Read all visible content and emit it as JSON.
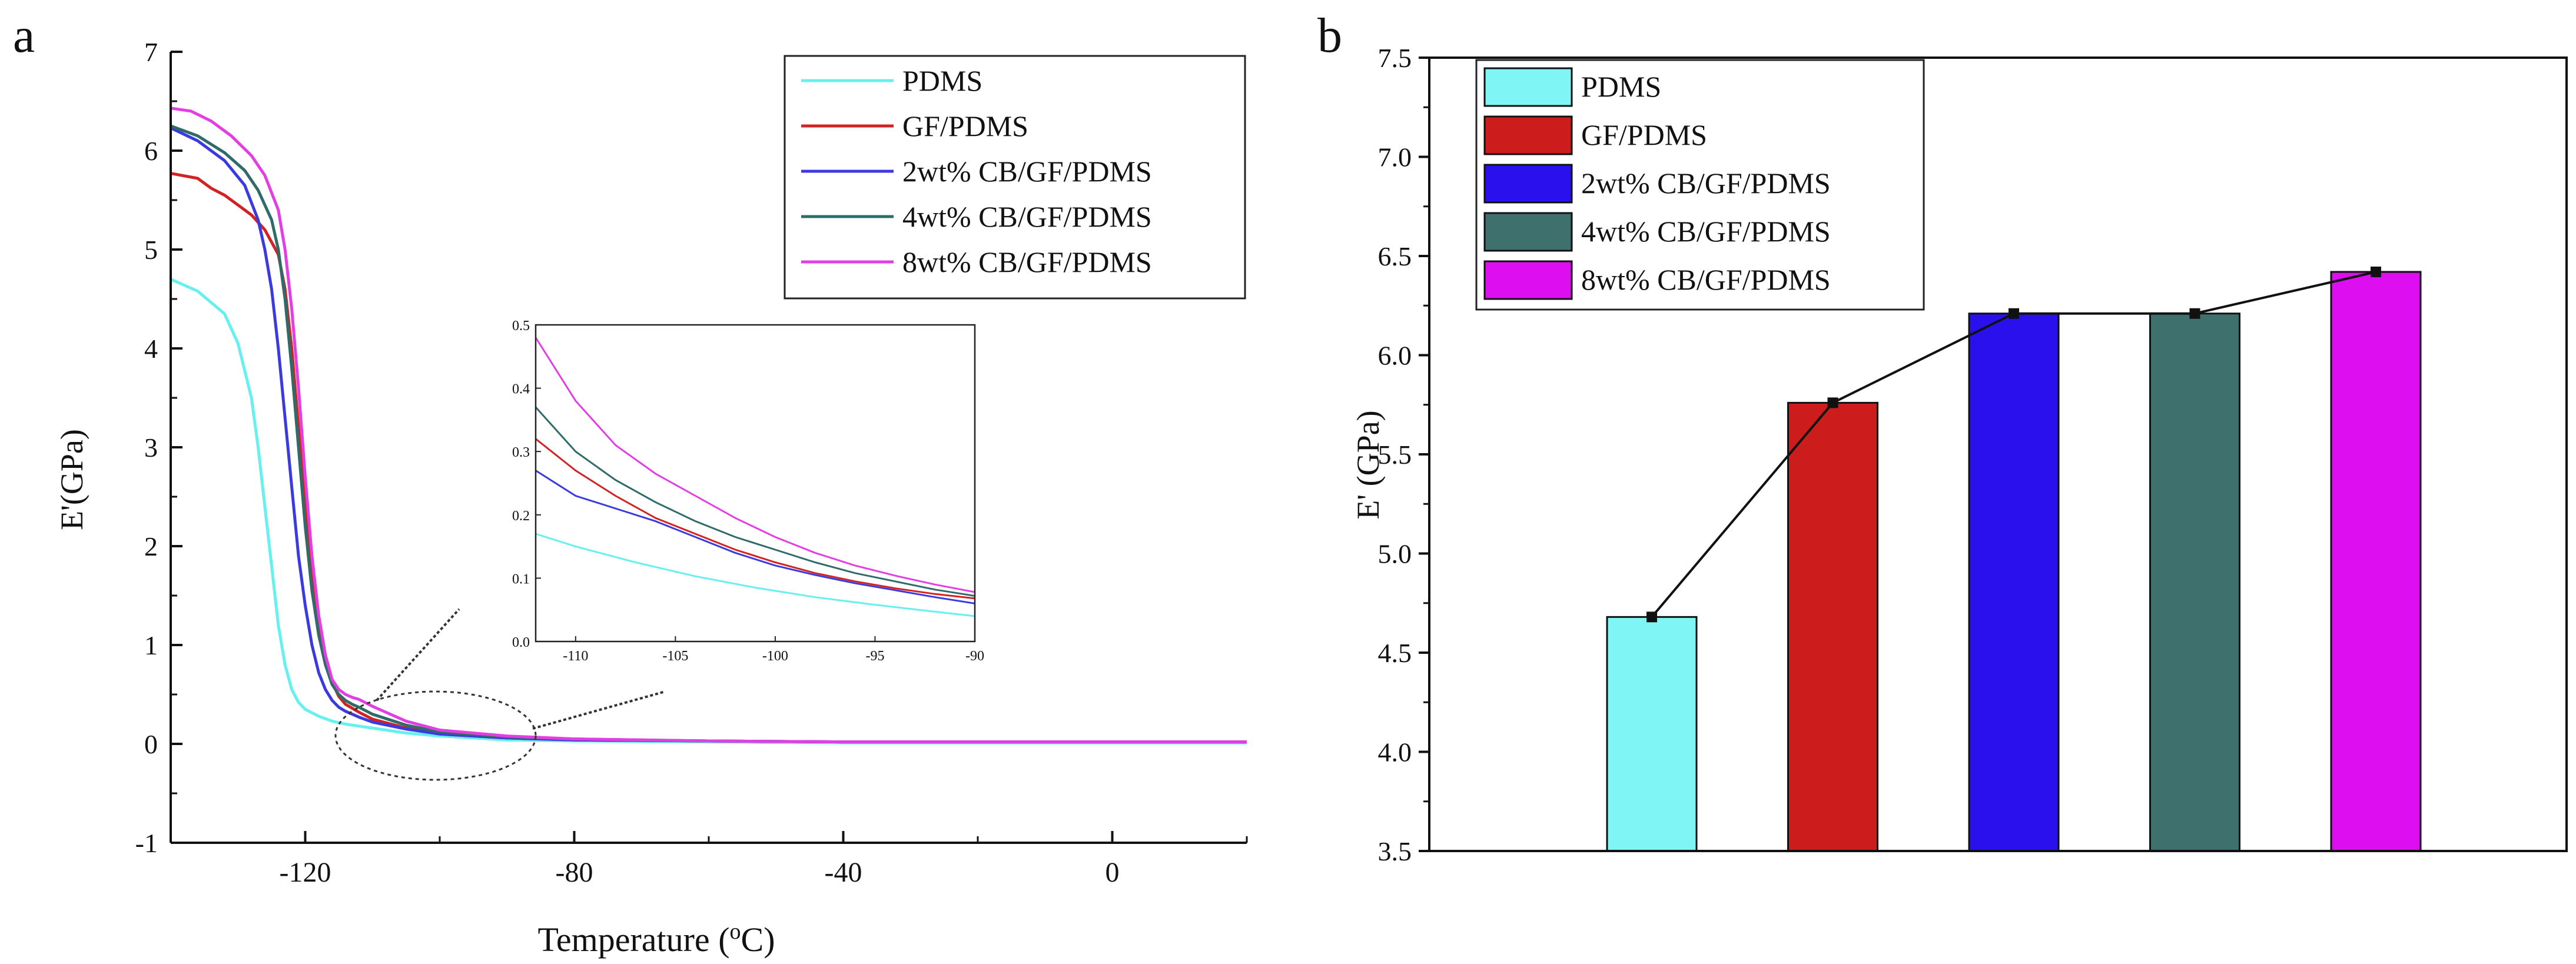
{
  "chart_data": [
    {
      "panel": "a",
      "type": "line",
      "xlabel": "Temperature",
      "xlabel_superscript": "o",
      "xlabel_unit": "C",
      "ylabel": "E'(GPa)",
      "xlim": [
        -140,
        20
      ],
      "ylim": [
        -1,
        7
      ],
      "xticks": [
        -120,
        -80,
        -40,
        0
      ],
      "xtick_labels": [
        "-120",
        "-80",
        "-40",
        "0"
      ],
      "yticks": [
        -1,
        0,
        1,
        2,
        3,
        4,
        5,
        6,
        7
      ],
      "ytick_labels": [
        "-1",
        "0",
        "1",
        "2",
        "3",
        "4",
        "5",
        "6",
        "7"
      ],
      "legend_position": "top-right",
      "series": [
        {
          "name": "PDMS",
          "color": "#66f0f0",
          "x": [
            -140,
            -136,
            -132,
            -130,
            -128,
            -127,
            -126,
            -125,
            -124,
            -123,
            -122,
            -121,
            -120,
            -118,
            -116,
            -114,
            -112,
            -110,
            -105,
            -100,
            -90,
            -80,
            -60,
            -40,
            -20,
            0,
            20
          ],
          "y": [
            4.7,
            4.58,
            4.35,
            4.05,
            3.5,
            3.0,
            2.4,
            1.8,
            1.2,
            0.8,
            0.55,
            0.42,
            0.35,
            0.28,
            0.23,
            0.2,
            0.18,
            0.16,
            0.11,
            0.08,
            0.04,
            0.03,
            0.02,
            0.01,
            0.01,
            0.01,
            0.01
          ]
        },
        {
          "name": "GF/PDMS",
          "color": "#d22222",
          "x": [
            -140,
            -136,
            -134,
            -132,
            -130,
            -128,
            -126,
            -124,
            -123,
            -122,
            -121,
            -120,
            -119,
            -118,
            -117,
            -116,
            -115,
            -114,
            -113,
            -112,
            -110,
            -105,
            -100,
            -90,
            -80,
            -60,
            -40,
            -20,
            0,
            20
          ],
          "y": [
            5.77,
            5.72,
            5.62,
            5.55,
            5.45,
            5.35,
            5.2,
            4.95,
            4.6,
            4.0,
            3.2,
            2.4,
            1.7,
            1.2,
            0.85,
            0.62,
            0.48,
            0.4,
            0.36,
            0.32,
            0.25,
            0.16,
            0.1,
            0.06,
            0.04,
            0.03,
            0.02,
            0.02,
            0.02,
            0.02
          ]
        },
        {
          "name": "2wt% CB/GF/PDMS",
          "color": "#3a3ae0",
          "x": [
            -140,
            -136,
            -132,
            -129,
            -127,
            -126,
            -125,
            -124,
            -123,
            -122,
            -121,
            -120,
            -119,
            -118,
            -117,
            -116,
            -115,
            -114,
            -113,
            -112,
            -110,
            -105,
            -100,
            -90,
            -80,
            -60,
            -40,
            -20,
            0,
            20
          ],
          "y": [
            6.23,
            6.1,
            5.9,
            5.65,
            5.3,
            5.0,
            4.6,
            4.0,
            3.3,
            2.6,
            1.9,
            1.4,
            1.0,
            0.72,
            0.55,
            0.44,
            0.37,
            0.33,
            0.3,
            0.27,
            0.22,
            0.15,
            0.1,
            0.06,
            0.04,
            0.03,
            0.02,
            0.02,
            0.02,
            0.02
          ]
        },
        {
          "name": "4wt% CB/GF/PDMS",
          "color": "#2f6b68",
          "x": [
            -140,
            -136,
            -132,
            -129,
            -127,
            -125,
            -124,
            -123,
            -122,
            -121,
            -120,
            -119,
            -118,
            -117,
            -116,
            -115,
            -114,
            -113,
            -112,
            -110,
            -105,
            -100,
            -90,
            -80,
            -60,
            -40,
            -20,
            0,
            20
          ],
          "y": [
            6.25,
            6.15,
            5.98,
            5.8,
            5.6,
            5.3,
            5.0,
            4.5,
            3.8,
            3.0,
            2.2,
            1.55,
            1.1,
            0.8,
            0.6,
            0.5,
            0.44,
            0.4,
            0.37,
            0.3,
            0.19,
            0.12,
            0.07,
            0.05,
            0.03,
            0.02,
            0.02,
            0.02,
            0.02
          ]
        },
        {
          "name": "8wt% CB/GF/PDMS",
          "color": "#e33ee3",
          "x": [
            -140,
            -137,
            -134,
            -131,
            -128,
            -126,
            -124,
            -123,
            -122,
            -121,
            -120,
            -119,
            -118,
            -117,
            -116,
            -115,
            -114,
            -113,
            -112,
            -110,
            -105,
            -100,
            -90,
            -80,
            -60,
            -40,
            -20,
            0,
            20
          ],
          "y": [
            6.43,
            6.4,
            6.3,
            6.15,
            5.95,
            5.75,
            5.4,
            5.0,
            4.4,
            3.6,
            2.7,
            1.9,
            1.3,
            0.9,
            0.65,
            0.55,
            0.5,
            0.47,
            0.45,
            0.38,
            0.23,
            0.14,
            0.08,
            0.05,
            0.03,
            0.02,
            0.02,
            0.02,
            0.02
          ]
        }
      ],
      "inset": {
        "xlim": [
          -112,
          -90
        ],
        "ylim": [
          0.0,
          0.5
        ],
        "xticks": [
          -110,
          -105,
          -100,
          -95,
          -90
        ],
        "xtick_labels": [
          "-110",
          "-105",
          "-100",
          "-95",
          "-90"
        ],
        "yticks": [
          0.0,
          0.1,
          0.2,
          0.3,
          0.4,
          0.5
        ],
        "ytick_labels": [
          "0.0",
          "0.1",
          "0.2",
          "0.3",
          "0.4",
          "0.5"
        ],
        "series": [
          {
            "name": "PDMS",
            "color": "#66f0f0",
            "x": [
              -112,
              -110,
              -107,
              -104,
              -101,
              -98,
              -95,
              -92,
              -90
            ],
            "y": [
              0.17,
              0.15,
              0.125,
              0.103,
              0.085,
              0.07,
              0.058,
              0.047,
              0.04
            ]
          },
          {
            "name": "GF/PDMS",
            "color": "#d22222",
            "x": [
              -112,
              -110,
              -108,
              -106,
              -104,
              -102,
              -100,
              -98,
              -96,
              -94,
              -92,
              -90
            ],
            "y": [
              0.32,
              0.27,
              0.23,
              0.195,
              0.17,
              0.145,
              0.125,
              0.108,
              0.095,
              0.084,
              0.075,
              0.068
            ]
          },
          {
            "name": "2wt% CB/GF/PDMS",
            "color": "#3a3ae0",
            "x": [
              -112,
              -110,
              -108,
              -106,
              -104,
              -102,
              -100,
              -98,
              -96,
              -94,
              -92,
              -90
            ],
            "y": [
              0.27,
              0.23,
              0.21,
              0.19,
              0.165,
              0.14,
              0.12,
              0.105,
              0.092,
              0.081,
              0.07,
              0.06
            ]
          },
          {
            "name": "4wt% CB/GF/PDMS",
            "color": "#2f6b68",
            "x": [
              -112,
              -110,
              -108,
              -106,
              -104,
              -102,
              -100,
              -98,
              -96,
              -94,
              -92,
              -90
            ],
            "y": [
              0.37,
              0.3,
              0.255,
              0.22,
              0.19,
              0.165,
              0.145,
              0.125,
              0.108,
              0.095,
              0.082,
              0.072
            ]
          },
          {
            "name": "8wt% CB/GF/PDMS",
            "color": "#e33ee3",
            "x": [
              -112,
              -110,
              -108,
              -106,
              -104,
              -102,
              -100,
              -98,
              -96,
              -94,
              -92,
              -90
            ],
            "y": [
              0.48,
              0.38,
              0.31,
              0.265,
              0.23,
              0.195,
              0.165,
              0.14,
              0.12,
              0.104,
              0.09,
              0.078
            ]
          }
        ]
      }
    },
    {
      "panel": "b",
      "type": "bar",
      "ylabel": "E' (GPa)",
      "xlabel": "",
      "ylim": [
        3.5,
        7.5
      ],
      "yticks": [
        3.5,
        4.0,
        4.5,
        5.0,
        5.5,
        6.0,
        6.5,
        7.0,
        7.5
      ],
      "ytick_labels": [
        "3.5",
        "4.0",
        "4.5",
        "5.0",
        "5.5",
        "6.0",
        "6.5",
        "7.0",
        "7.5"
      ],
      "legend_position": "top-left",
      "categories": [
        "PDMS",
        "GF/PDMS",
        "2wt% CB/GF/PDMS",
        "4wt% CB/GF/PDMS",
        "8wt% CB/GF/PDMS"
      ],
      "values": [
        4.68,
        5.76,
        6.21,
        6.21,
        6.42
      ],
      "colors": [
        "#7ff5f5",
        "#cc1c1c",
        "#2b10ee",
        "#3e706e",
        "#dd0ef0"
      ],
      "line_overlay": true,
      "line_color": "#111111"
    }
  ]
}
